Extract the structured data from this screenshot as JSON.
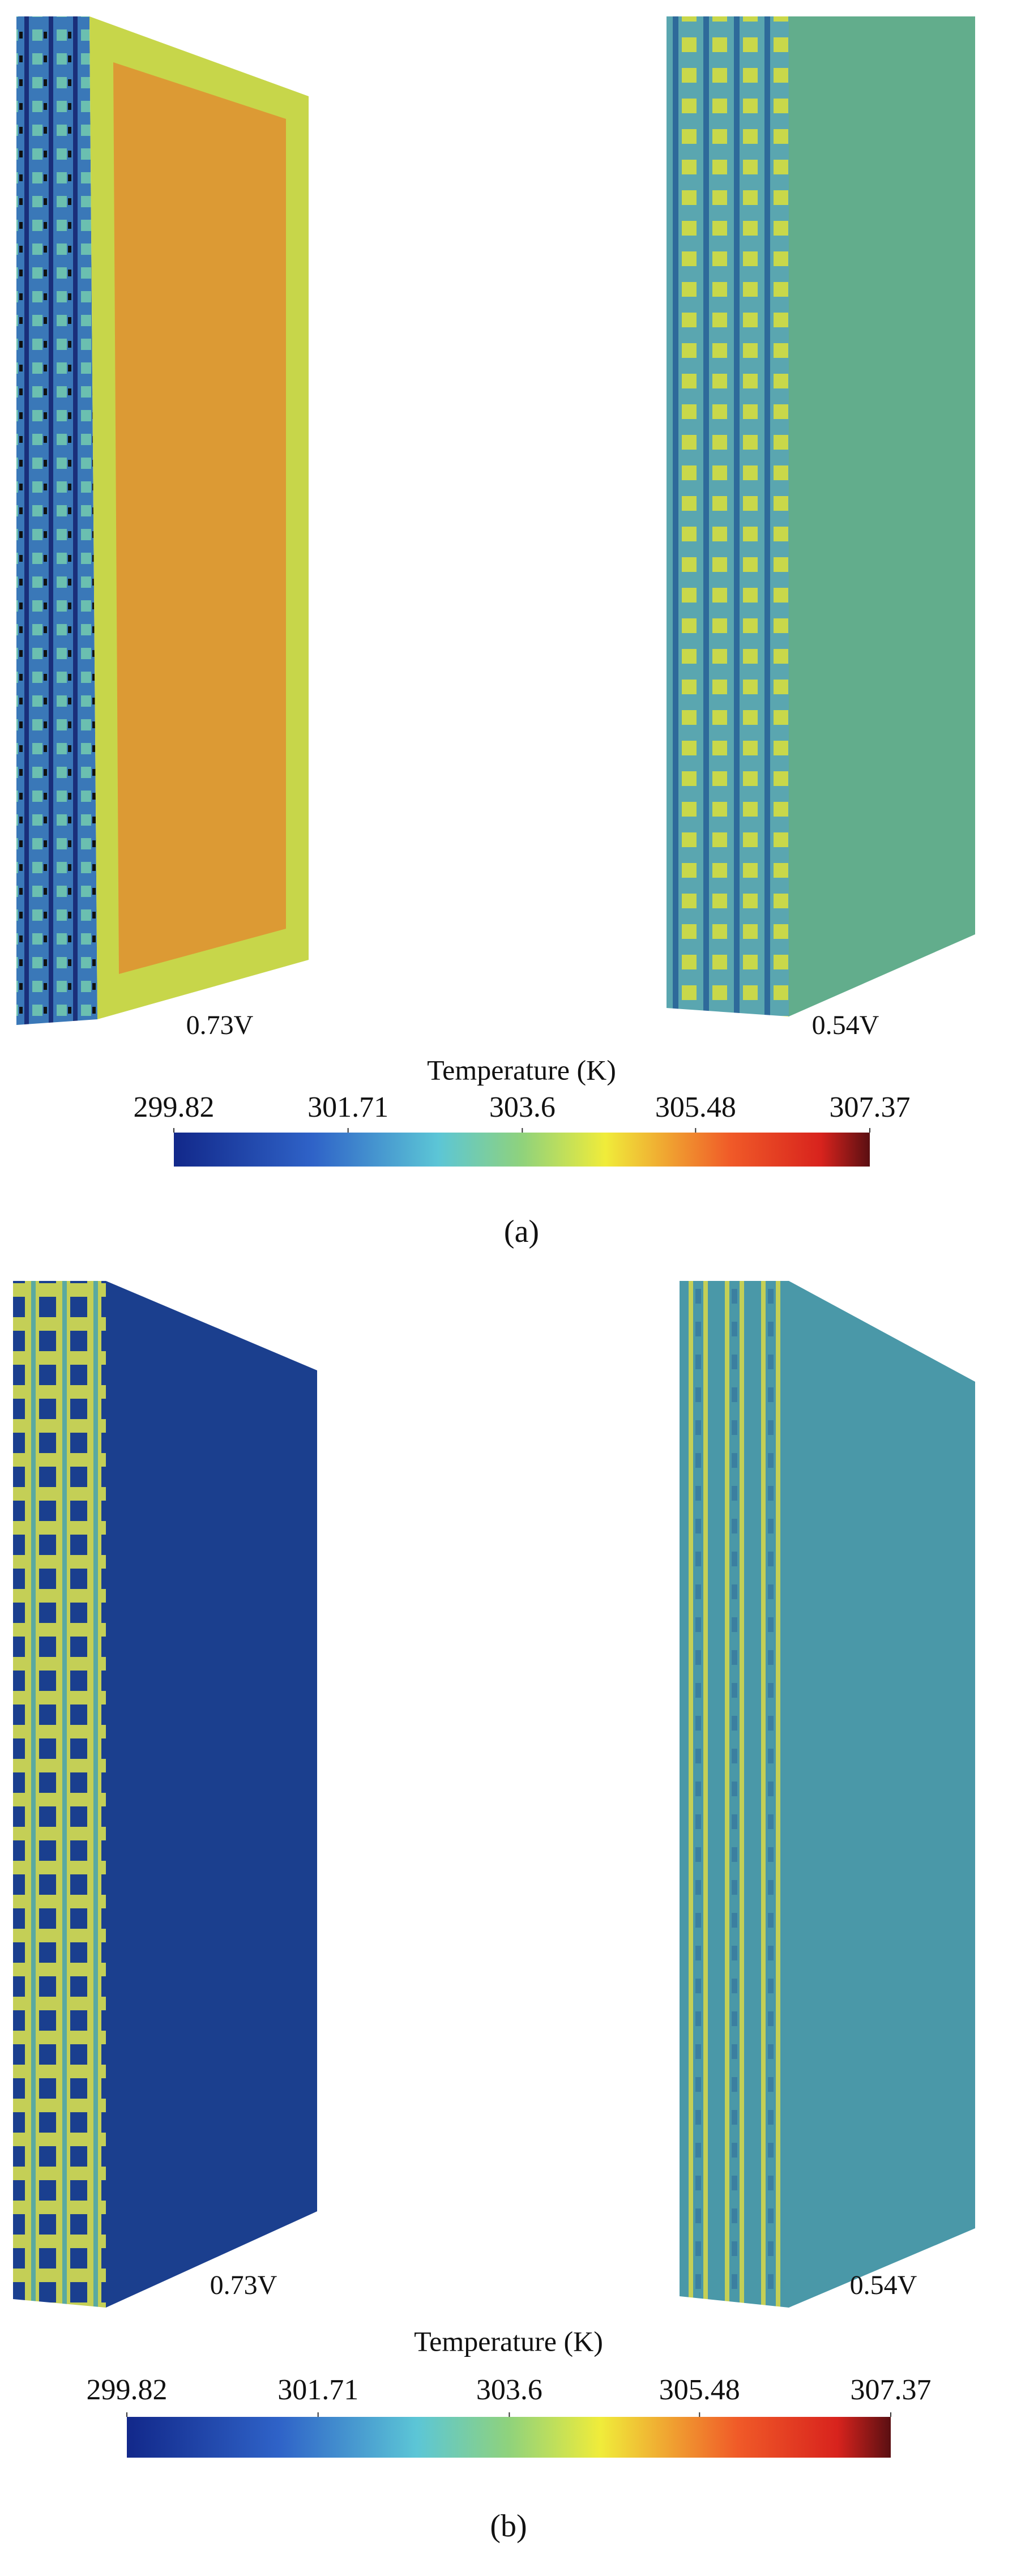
{
  "panels": [
    {
      "label": "(a)",
      "left_label": "0.73V",
      "right_label": "0.54V",
      "colorbar": {
        "title": "Temperature (K)",
        "ticks": [
          299.82,
          301.71,
          303.6,
          305.48,
          307.37
        ]
      }
    },
    {
      "label": "(b)",
      "left_label": "0.73V",
      "right_label": "0.54V",
      "colorbar": {
        "title": "Temperature (K)",
        "ticks": [
          299.82,
          301.71,
          303.6,
          305.48,
          307.37
        ]
      }
    }
  ]
}
